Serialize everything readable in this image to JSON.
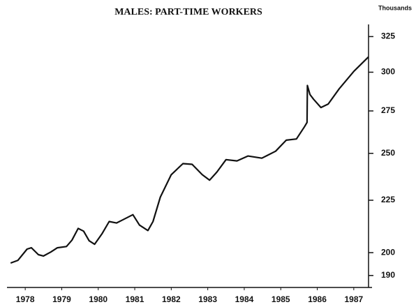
{
  "chart_data": {
    "type": "line",
    "title": "MALES: PART-TIME WORKERS",
    "y_unit": "Thousands",
    "x": [
      1978.1,
      1978.3,
      1978.55,
      1978.67,
      1978.86,
      1979.0,
      1979.2,
      1979.38,
      1979.63,
      1979.78,
      1979.95,
      1980.1,
      1980.25,
      1980.4,
      1980.6,
      1980.8,
      1981.0,
      1981.15,
      1981.45,
      1981.63,
      1981.86,
      1982.0,
      1982.2,
      1982.5,
      1982.82,
      1983.07,
      1983.35,
      1983.55,
      1983.75,
      1984.0,
      1984.3,
      1984.6,
      1984.98,
      1985.36,
      1985.65,
      1985.93,
      1986.15,
      1986.22,
      1986.23,
      1986.3,
      1986.4,
      1986.6,
      1986.8,
      1987.1,
      1987.5,
      1987.9
    ],
    "series": [
      {
        "name": "Males: part-time workers",
        "color": "#111111",
        "values": [
          195.4,
          196.6,
          201.6,
          202.2,
          199.1,
          198.5,
          200.3,
          202.2,
          202.8,
          205.7,
          211.2,
          209.9,
          205.4,
          203.8,
          208.6,
          214.5,
          213.8,
          215.1,
          217.8,
          212.8,
          210.2,
          214.5,
          226.6,
          238.3,
          244.3,
          243.9,
          238.3,
          235.4,
          239.7,
          246.5,
          245.8,
          248.5,
          247.3,
          251.2,
          257.5,
          258.2,
          265.4,
          268,
          291.2,
          285.3,
          282.3,
          277.1,
          279.3,
          289,
          300.5,
          310.4
        ]
      }
    ],
    "xlim": [
      1978.0,
      1988.0
    ],
    "xticks": [
      {
        "value": 1978.5,
        "label": "1978"
      },
      {
        "value": 1979.5,
        "label": "1979"
      },
      {
        "value": 1980.5,
        "label": "1980"
      },
      {
        "value": 1981.5,
        "label": "1981"
      },
      {
        "value": 1982.5,
        "label": "1982"
      },
      {
        "value": 1983.5,
        "label": "1983"
      },
      {
        "value": 1984.5,
        "label": "1984"
      },
      {
        "value": 1985.5,
        "label": "1985"
      },
      {
        "value": 1986.5,
        "label": "1986"
      },
      {
        "value": 1987.5,
        "label": "1987"
      }
    ],
    "ylim": [
      187,
      334
    ],
    "yticks": [
      190,
      200,
      225,
      250,
      275,
      300,
      325
    ],
    "log_y": true,
    "grid": false
  }
}
